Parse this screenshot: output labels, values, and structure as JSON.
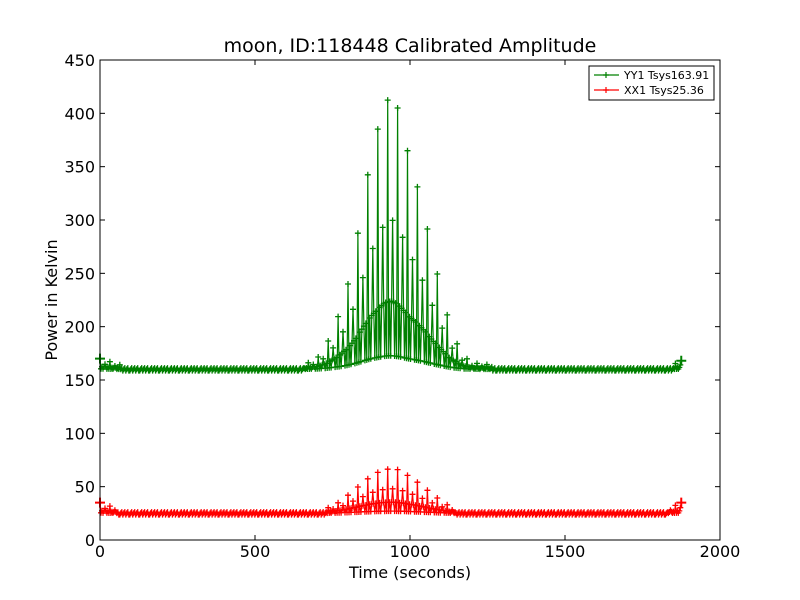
{
  "chart_data": {
    "type": "line",
    "title": "moon, ID:118448 Calibrated Amplitude",
    "xlabel": "Time (seconds)",
    "ylabel": "Power in Kelvin",
    "xlim": [
      0,
      2000
    ],
    "ylim": [
      0,
      450
    ],
    "xticks": [
      0,
      500,
      1000,
      1500,
      2000
    ],
    "yticks": [
      0,
      50,
      100,
      150,
      200,
      250,
      300,
      350,
      400,
      450
    ],
    "grid": false,
    "legend_position": "top-right",
    "marker": "+",
    "series": [
      {
        "name": "YY1 Tsys163.91",
        "color": "#008000",
        "baseline": 160,
        "x": [
          0,
          100,
          200,
          300,
          400,
          500,
          600,
          650,
          700,
          725,
          750,
          775,
          800,
          825,
          850,
          875,
          900,
          920,
          940,
          960,
          980,
          1000,
          1025,
          1050,
          1075,
          1100,
          1125,
          1150,
          1175,
          1200,
          1300,
          1400,
          1500,
          1600,
          1700,
          1800,
          1875
        ],
        "peaks": [
          170,
          161,
          160,
          161,
          160,
          161,
          161,
          163,
          170,
          180,
          195,
          215,
          240,
          275,
          320,
          360,
          390,
          410,
          416,
          405,
          380,
          355,
          330,
          300,
          265,
          235,
          205,
          185,
          172,
          166,
          163,
          162,
          162,
          160,
          159,
          158,
          168
        ]
      },
      {
        "name": "XX1 Tsys25.36",
        "color": "#ff0000",
        "baseline": 25,
        "x": [
          0,
          100,
          200,
          300,
          400,
          500,
          600,
          650,
          700,
          725,
          750,
          775,
          800,
          825,
          850,
          875,
          900,
          920,
          940,
          960,
          980,
          1000,
          1025,
          1050,
          1075,
          1100,
          1125,
          1150,
          1175,
          1200,
          1300,
          1400,
          1500,
          1600,
          1700,
          1800,
          1875
        ],
        "peaks": [
          35,
          25,
          25,
          25,
          25,
          25,
          25,
          25,
          27,
          29,
          32,
          36,
          42,
          48,
          54,
          60,
          64,
          66,
          67,
          66,
          63,
          59,
          54,
          48,
          42,
          37,
          32,
          29,
          27,
          26,
          25,
          25,
          25,
          25,
          25,
          25,
          35
        ]
      }
    ]
  }
}
